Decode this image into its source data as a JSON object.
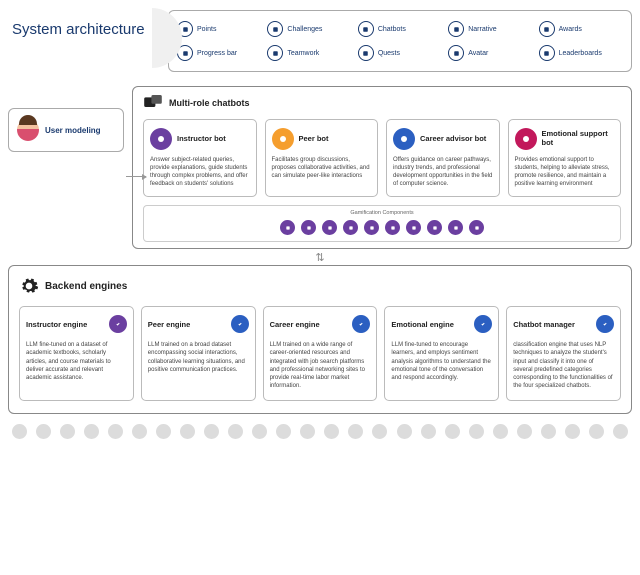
{
  "title": "System architecture",
  "colors": {
    "navy": "#1a3a6e",
    "purple": "#6b3fa0",
    "orange": "#f59e2e",
    "blue": "#2b5fc1",
    "magenta": "#c2185b",
    "grey": "#dcdcdc"
  },
  "gamification_top": [
    [
      {
        "label": "Points",
        "color": "#1a3a6e"
      },
      {
        "label": "Challenges",
        "color": "#1a3a6e"
      },
      {
        "label": "Chatbots",
        "color": "#1a3a6e"
      },
      {
        "label": "Narrative",
        "color": "#1a3a6e"
      },
      {
        "label": "Awards",
        "color": "#1a3a6e"
      }
    ],
    [
      {
        "label": "Progress bar",
        "color": "#1a3a6e"
      },
      {
        "label": "Teamwork",
        "color": "#1a3a6e"
      },
      {
        "label": "Quests",
        "color": "#1a3a6e"
      },
      {
        "label": "Avatar",
        "color": "#1a3a6e"
      },
      {
        "label": "Leaderboards",
        "color": "#1a3a6e"
      }
    ]
  ],
  "user_modeling": {
    "label": "User modeling"
  },
  "chatbots_panel": {
    "title": "Multi-role chatbots",
    "bots": [
      {
        "title": "Instructor bot",
        "color": "#6b3fa0",
        "desc": "Answer subject-related queries, provide explanations, guide students through complex problems, and offer feedback on students' solutions"
      },
      {
        "title": "Peer bot",
        "color": "#f59e2e",
        "desc": "Facilitates group discussions, proposes collaborative activities, and can simulate peer-like interactions"
      },
      {
        "title": "Career advisor bot",
        "color": "#2b5fc1",
        "desc": "Offers guidance on career pathways, industry trends, and professional development opportunities in the field of computer science."
      },
      {
        "title": "Emotional support bot",
        "color": "#c2185b",
        "desc": "Provides emotional support to students, helping to alleviate stress, promote resilience, and maintain a positive learning environment"
      }
    ],
    "strip_title": "Gamification Components",
    "strip_colors": [
      "#6b3fa0",
      "#6b3fa0",
      "#6b3fa0",
      "#6b3fa0",
      "#6b3fa0",
      "#6b3fa0",
      "#6b3fa0",
      "#6b3fa0",
      "#6b3fa0",
      "#6b3fa0"
    ]
  },
  "backend": {
    "title": "Backend engines",
    "engines": [
      {
        "title": "Instructor engine",
        "color": "#6b3fa0",
        "desc": "LLM fine-tuned on a dataset of academic textbooks, scholarly articles, and course materials to deliver accurate and relevant academic assistance."
      },
      {
        "title": "Peer engine",
        "color": "#2b5fc1",
        "desc": "LLM trained on a broad dataset encompassing social interactions, collaborative learning situations, and positive communication practices."
      },
      {
        "title": "Career engine",
        "color": "#2b5fc1",
        "desc": "LLM trained on a wide range of career-oriented resources and integrated with job search platforms and professional networking sites to provide real-time labor market information."
      },
      {
        "title": "Emotional engine",
        "color": "#2b5fc1",
        "desc": "LLM fine-tuned to encourage learners, and employs sentiment analysis algorithms to understand the emotional tone of the conversation and respond accordingly."
      },
      {
        "title": "Chatbot manager",
        "color": "#2b5fc1",
        "desc": "classification engine that uses NLP techniques to analyze the student's input and classify it into one of several predefined categories corresponding to the functionalities of the four specialized chatbots."
      }
    ]
  },
  "dot_count": 26
}
